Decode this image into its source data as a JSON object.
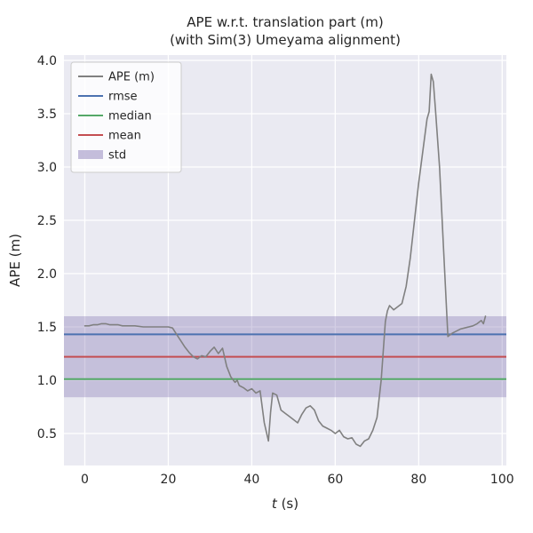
{
  "figure": {
    "background": "#ffffff",
    "axes_background": "#eaeaf2",
    "grid_color": "#ffffff",
    "text_color": "#262626"
  },
  "chart_data": {
    "type": "line",
    "title": "APE w.r.t. translation part (m)\n(with Sim(3) Umeyama alignment)",
    "title_lines": [
      "APE w.r.t. translation part (m)",
      "(with Sim(3) Umeyama alignment)"
    ],
    "xlabel_var": "t",
    "xlabel_rest": " (s)",
    "ylabel": "APE (m)",
    "xlim": [
      -5,
      101
    ],
    "ylim": [
      0.2,
      4.05
    ],
    "xticks": [
      0,
      20,
      40,
      60,
      80,
      100
    ],
    "yticks": [
      0.5,
      1.0,
      1.5,
      2.0,
      2.5,
      3.0,
      3.5,
      4.0
    ],
    "grid": true,
    "legend_position": "upper left",
    "series": [
      {
        "name": "APE (m)",
        "kind": "line",
        "color": "#808080",
        "x": [
          0,
          1,
          2,
          3,
          4,
          5,
          6,
          7,
          8,
          9,
          10,
          12,
          14,
          16,
          18,
          20,
          21,
          22,
          23,
          24,
          25,
          26,
          27,
          28,
          29,
          30,
          31,
          32,
          33,
          34,
          35,
          36,
          36.5,
          37,
          38,
          39,
          40,
          41,
          42,
          43,
          44,
          44.5,
          45,
          46,
          47,
          48,
          49,
          50,
          51,
          52,
          53,
          54,
          55,
          56,
          57,
          58,
          59,
          60,
          61,
          62,
          63,
          64,
          65,
          66,
          67,
          68,
          69,
          70,
          71,
          72,
          72.5,
          73,
          74,
          75,
          76,
          77,
          78,
          79,
          80,
          81,
          82,
          82.5,
          83,
          83.5,
          84,
          85,
          86,
          87,
          88,
          89,
          90,
          91,
          92,
          93,
          94,
          95,
          95.5,
          96
        ],
        "y": [
          1.51,
          1.51,
          1.52,
          1.52,
          1.53,
          1.53,
          1.52,
          1.52,
          1.52,
          1.51,
          1.51,
          1.51,
          1.5,
          1.5,
          1.5,
          1.5,
          1.49,
          1.43,
          1.37,
          1.31,
          1.26,
          1.22,
          1.2,
          1.23,
          1.22,
          1.27,
          1.31,
          1.25,
          1.3,
          1.13,
          1.03,
          0.98,
          1.0,
          0.95,
          0.93,
          0.9,
          0.92,
          0.88,
          0.9,
          0.6,
          0.43,
          0.7,
          0.88,
          0.86,
          0.72,
          0.69,
          0.66,
          0.63,
          0.6,
          0.68,
          0.74,
          0.76,
          0.72,
          0.62,
          0.57,
          0.55,
          0.53,
          0.5,
          0.53,
          0.47,
          0.45,
          0.46,
          0.4,
          0.38,
          0.43,
          0.45,
          0.53,
          0.65,
          1.0,
          1.55,
          1.65,
          1.7,
          1.66,
          1.69,
          1.72,
          1.88,
          2.15,
          2.5,
          2.85,
          3.15,
          3.45,
          3.52,
          3.87,
          3.8,
          3.55,
          3.0,
          2.2,
          1.41,
          1.44,
          1.46,
          1.48,
          1.49,
          1.5,
          1.51,
          1.53,
          1.56,
          1.53,
          1.6
        ]
      },
      {
        "name": "rmse",
        "kind": "hline",
        "color": "#4c72b0",
        "value": 1.43
      },
      {
        "name": "median",
        "kind": "hline",
        "color": "#55a868",
        "value": 1.01
      },
      {
        "name": "mean",
        "kind": "hline",
        "color": "#c44e52",
        "value": 1.22
      },
      {
        "name": "std",
        "kind": "band",
        "color": "#8172b2",
        "alpha": 0.35,
        "low": 0.84,
        "high": 1.6
      }
    ]
  }
}
